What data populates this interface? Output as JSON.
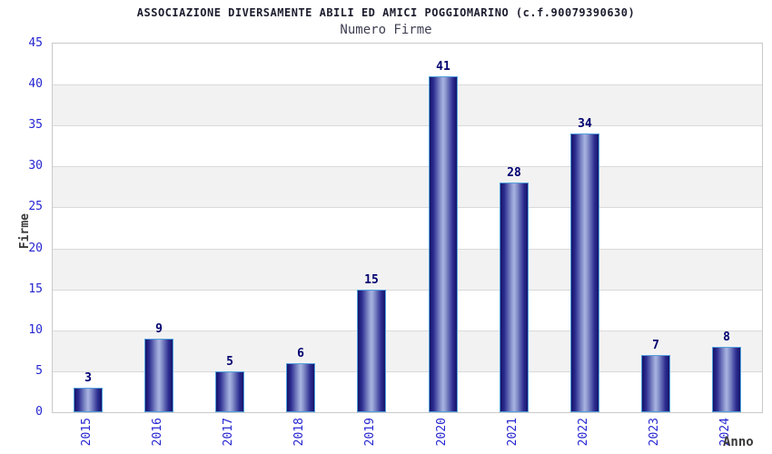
{
  "chart_data": {
    "type": "bar",
    "title": "ASSOCIAZIONE DIVERSAMENTE ABILI ED AMICI POGGIOMARINO (c.f.90079390630)",
    "subtitle": "Numero Firme",
    "xlabel": "Anno",
    "ylabel": "Firme",
    "categories": [
      "2015",
      "2016",
      "2017",
      "2018",
      "2019",
      "2020",
      "2021",
      "2022",
      "2023",
      "2024"
    ],
    "values": [
      3,
      9,
      5,
      6,
      15,
      41,
      28,
      34,
      7,
      8
    ],
    "yticks": [
      0,
      5,
      10,
      15,
      20,
      25,
      30,
      35,
      40,
      45
    ],
    "ylim": [
      0,
      45
    ],
    "ytick_step": 5,
    "grid": true,
    "legend": "none",
    "band_pattern": "alternating horizontal stripes every 5 units, white and light gray",
    "colors": {
      "bar_edge": "#14146a",
      "bar_mid": "#2e2e92",
      "bar_light": "#8894cc",
      "bar_center": "#a9b4e2",
      "bar_border": "#53a0dc",
      "value_label": "#000070",
      "tick_label": "#2626d2",
      "axis_label": "#3a3a3a",
      "band_gray": "#f2f2f2",
      "gridline": "#d9d9d9",
      "plot_border": "#c9c9c9",
      "title_color": "#1c1c2e",
      "subtitle_color": "#3f3f52"
    }
  }
}
